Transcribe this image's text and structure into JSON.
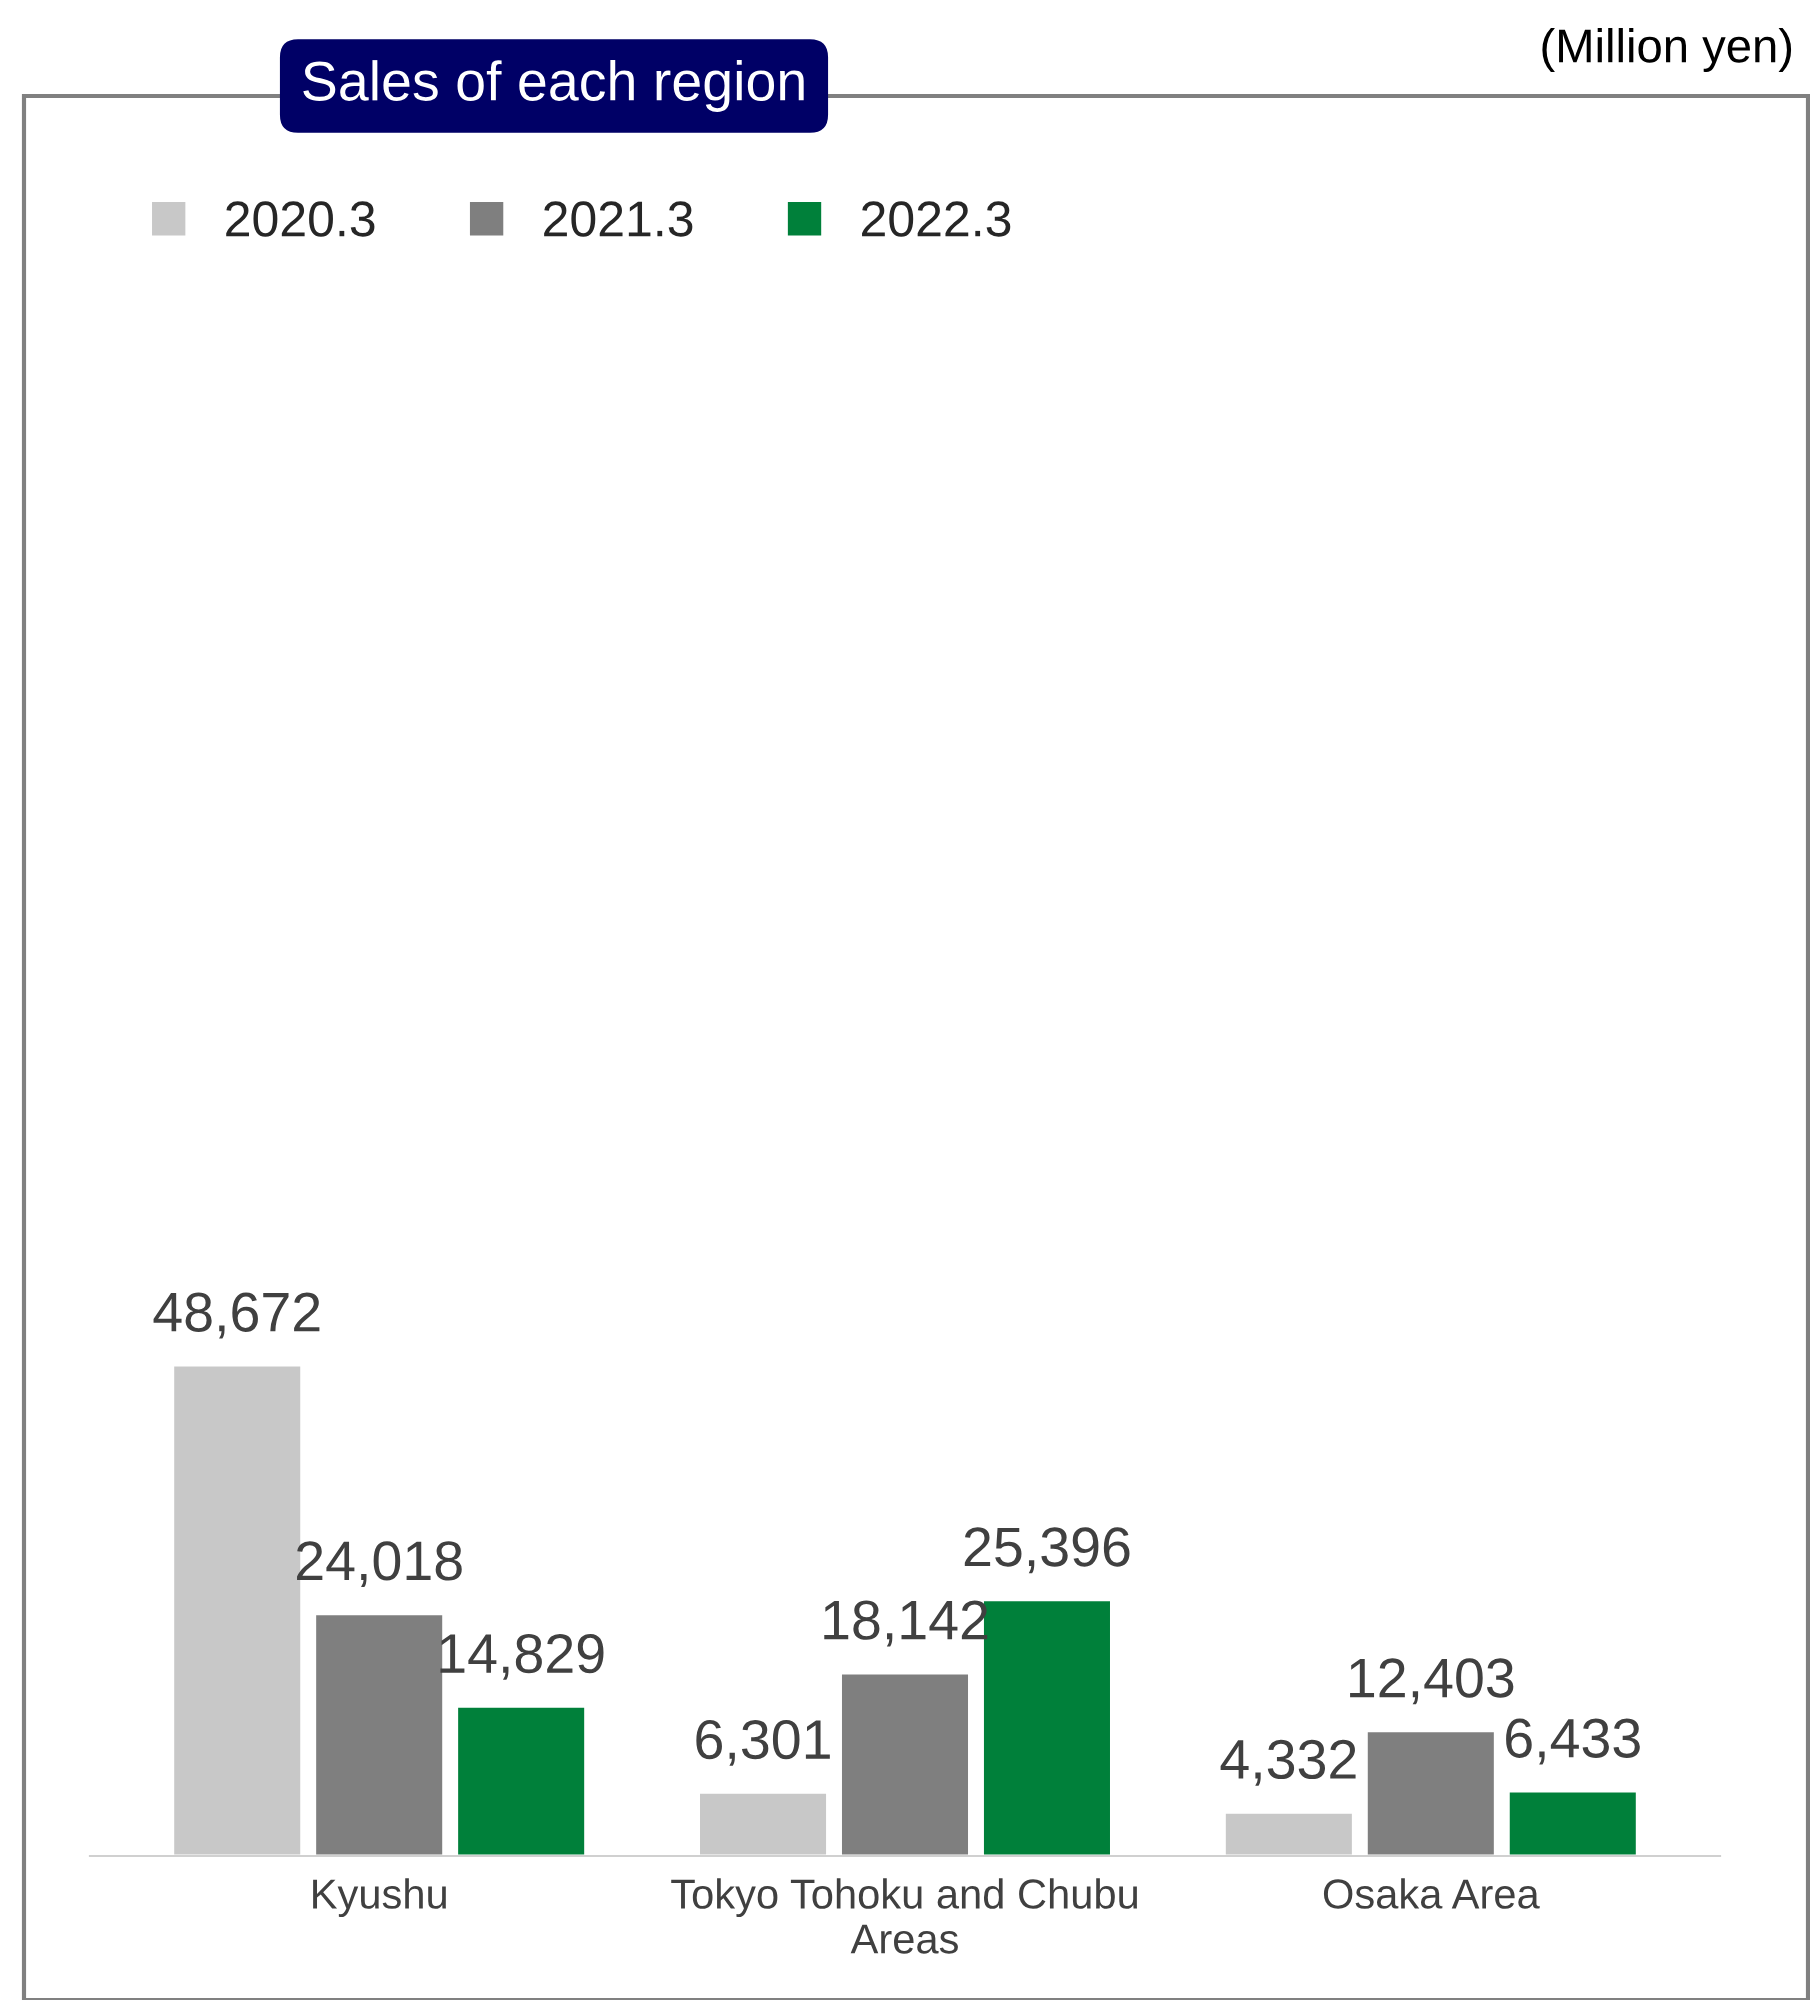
{
  "chart_data": {
    "type": "bar",
    "title": "Sales of each region",
    "categories": [
      "Kyushu",
      "Tokyo Tohoku and Chubu Areas",
      "Osaka Area"
    ],
    "series": [
      {
        "name": "2020.3",
        "color": "#c8c8c8",
        "values": [
          48672,
          6301,
          4332
        ],
        "value_labels": [
          "48,672",
          "6,301",
          "4,332"
        ]
      },
      {
        "name": "2021.3",
        "color": "#7f7f7f",
        "values": [
          24018,
          18142,
          12403
        ],
        "value_labels": [
          "24,018",
          "18,142",
          "12,403"
        ]
      },
      {
        "name": "2022.3",
        "color": "#00803a",
        "values": [
          14829,
          25396,
          6433
        ],
        "value_labels": [
          "14,829",
          "25,396",
          "6,433"
        ]
      }
    ],
    "annotations": [
      "(Million yen)"
    ],
    "legend": "top left"
  }
}
